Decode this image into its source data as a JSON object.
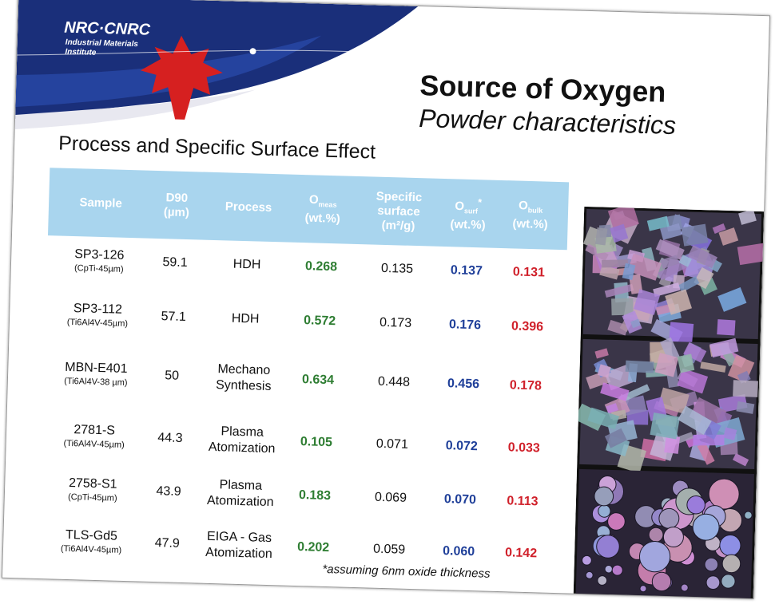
{
  "header": {
    "logo": "NRC·CNRC",
    "institute_line1": "Industrial Materials",
    "institute_line2": "Institute",
    "title": "Source of Oxygen",
    "subtitle": "Powder characteristics"
  },
  "section_title": "Process and Specific Surface Effect",
  "table": {
    "columns": [
      {
        "label": "Sample"
      },
      {
        "label": "D90",
        "unit": "(µm)"
      },
      {
        "label": "Process"
      },
      {
        "label": "O",
        "sub": "meas",
        "unit": "(wt.%)"
      },
      {
        "label": "Specific surface",
        "unit": "(m²/g)"
      },
      {
        "label": "O",
        "sub": "surf",
        "sup": "*",
        "unit": "(wt.%)"
      },
      {
        "label": "O",
        "sub": "bulk",
        "unit": "(wt.%)"
      }
    ],
    "rows": [
      {
        "sample": "SP3-126",
        "sample_note": "(CpTi-45µm)",
        "d90": "59.1",
        "process": "HDH",
        "o_meas": "0.268",
        "specific_surface": "0.135",
        "o_surf": "0.137",
        "o_bulk": "0.131"
      },
      {
        "sample": "SP3-112",
        "sample_note": "(Ti6Al4V-45µm)",
        "d90": "57.1",
        "process": "HDH",
        "o_meas": "0.572",
        "specific_surface": "0.173",
        "o_surf": "0.176",
        "o_bulk": "0.396"
      },
      {
        "sample": "MBN-E401",
        "sample_note": "(Ti6Al4V-38 µm)",
        "d90": "50",
        "process": "Mechano Synthesis",
        "o_meas": "0.634",
        "specific_surface": "0.448",
        "o_surf": "0.456",
        "o_bulk": "0.178"
      },
      {
        "sample": "2781-S",
        "sample_note": "(Ti6Al4V-45µm)",
        "d90": "44.3",
        "process": "Plasma Atomization",
        "o_meas": "0.105",
        "specific_surface": "0.071",
        "o_surf": "0.072",
        "o_bulk": "0.033"
      },
      {
        "sample": "2758-S1",
        "sample_note": "(CpTi-45µm)",
        "d90": "43.9",
        "process": "Plasma Atomization",
        "o_meas": "0.183",
        "specific_surface": "0.069",
        "o_surf": "0.070",
        "o_bulk": "0.113"
      },
      {
        "sample": "TLS-Gd5",
        "sample_note": "(Ti6Al4V-45µm)",
        "d90": "47.9",
        "process": "EIGA - Gas Atomization",
        "o_meas": "0.202",
        "specific_surface": "0.059",
        "o_surf": "0.060",
        "o_bulk": "0.142"
      }
    ]
  },
  "footnote": "*assuming 6nm oxide thickness"
}
